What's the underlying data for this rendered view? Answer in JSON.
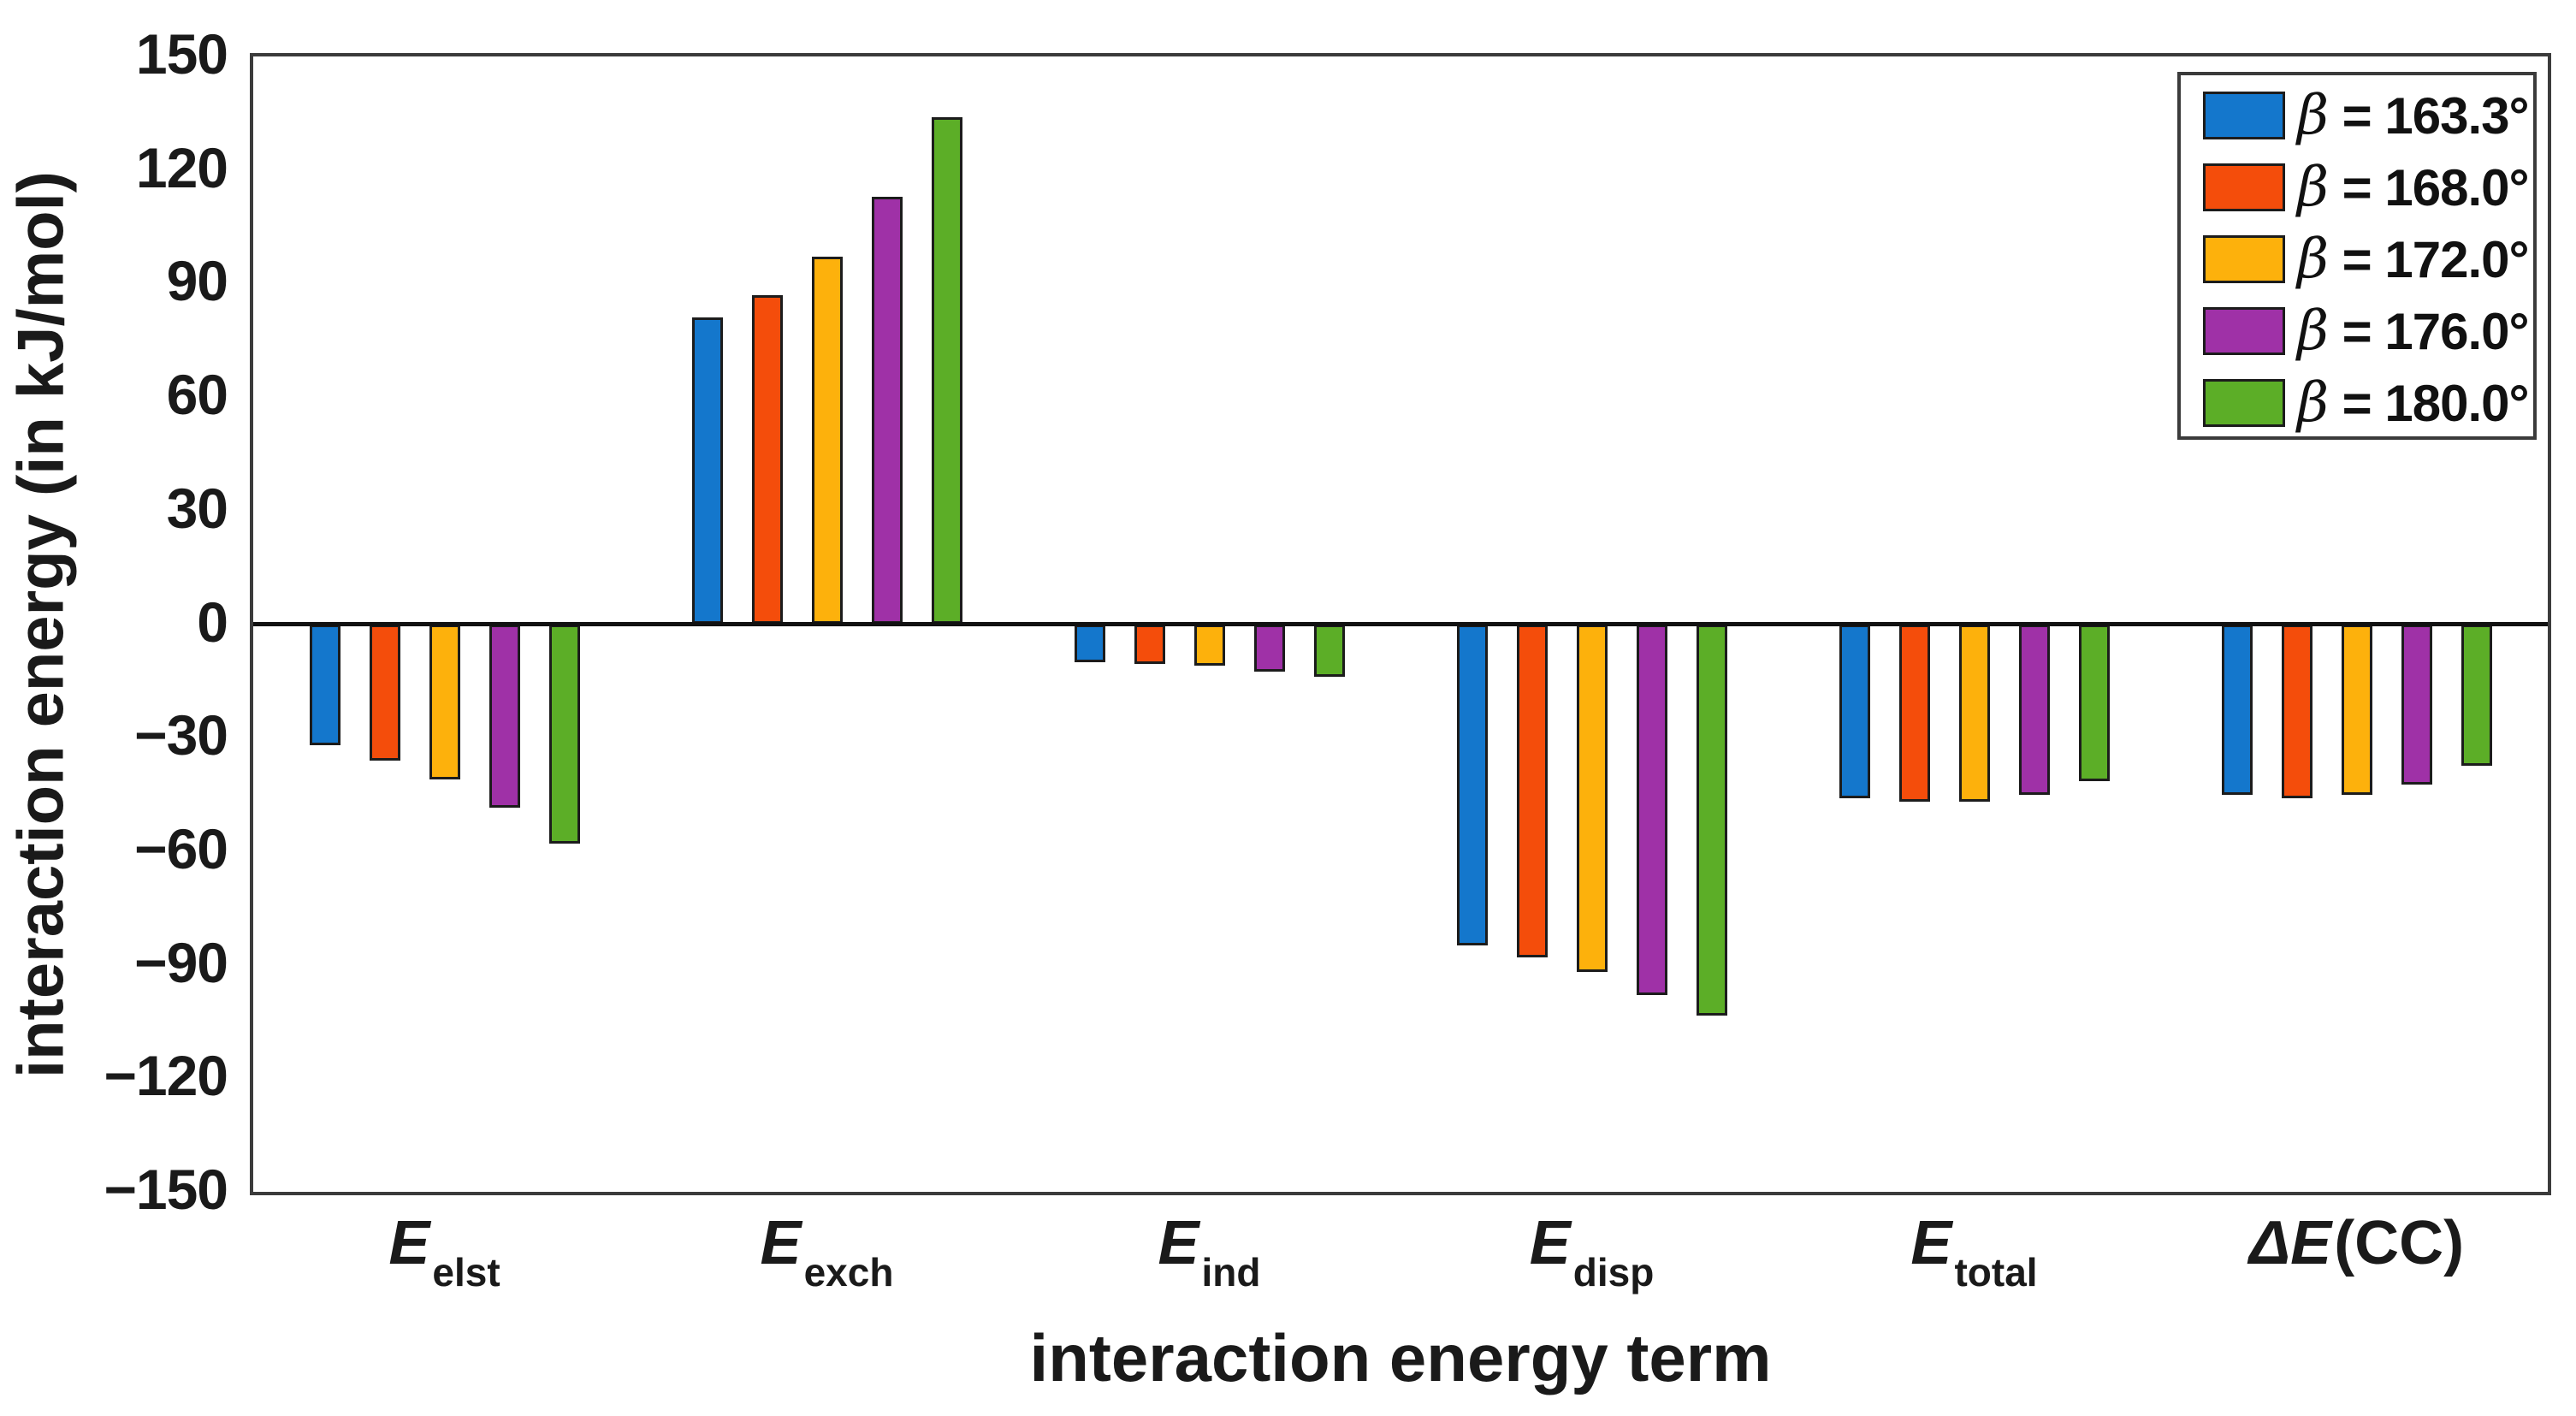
{
  "chart_data": {
    "type": "bar",
    "title": "",
    "xlabel": "interaction energy term",
    "ylabel": "interaction energy (in kJ/mol)",
    "ylim": [
      -150,
      150
    ],
    "ytick_step": 30,
    "yticks": [
      150,
      120,
      90,
      60,
      30,
      0,
      -30,
      -60,
      -90,
      -120,
      -150
    ],
    "ytick_labels": [
      "150",
      "120",
      "90",
      "60",
      "30",
      "0",
      "−30",
      "−60",
      "−90",
      "−120",
      "−150"
    ],
    "grid": false,
    "legend_position": "top-right",
    "zero_line": true,
    "categories": [
      {
        "prefix": "",
        "main": "E",
        "sub": "elst",
        "suffix": ""
      },
      {
        "prefix": "",
        "main": "E",
        "sub": "exch",
        "suffix": ""
      },
      {
        "prefix": "",
        "main": "E",
        "sub": "ind",
        "suffix": ""
      },
      {
        "prefix": "",
        "main": "E",
        "sub": "disp",
        "suffix": ""
      },
      {
        "prefix": "",
        "main": "E",
        "sub": "total",
        "suffix": ""
      },
      {
        "prefix": "Δ",
        "main": "E",
        "sub": "",
        "suffix": "(CC)"
      }
    ],
    "series": [
      {
        "name": "β = 163.3°",
        "symbol": "β",
        "label_rest": " = 163.3°",
        "color": "#1477CC",
        "values": [
          -32,
          81,
          -10,
          -85,
          -46,
          -45
        ]
      },
      {
        "name": "β = 168.0°",
        "symbol": "β",
        "label_rest": " = 168.0°",
        "color": "#F44D0B",
        "values": [
          -36,
          87,
          -10.5,
          -88,
          -47,
          -46
        ]
      },
      {
        "name": "β = 172.0°",
        "symbol": "β",
        "label_rest": " = 172.0°",
        "color": "#FDB10C",
        "values": [
          -41,
          97,
          -11,
          -92,
          -47,
          -45
        ]
      },
      {
        "name": "β = 176.0°",
        "symbol": "β",
        "label_rest": " = 176.0°",
        "color": "#9F31A7",
        "values": [
          -48.5,
          113,
          -12.5,
          -98,
          -45,
          -42.5
        ]
      },
      {
        "name": "β = 180.0°",
        "symbol": "β",
        "label_rest": " = 180.0°",
        "color": "#5CAE27",
        "values": [
          -58,
          134,
          -14,
          -103.5,
          -41.5,
          -37.5
        ]
      }
    ],
    "axis_color": "#3b3b3b",
    "bar_edge_color": "#1c1c1c"
  }
}
